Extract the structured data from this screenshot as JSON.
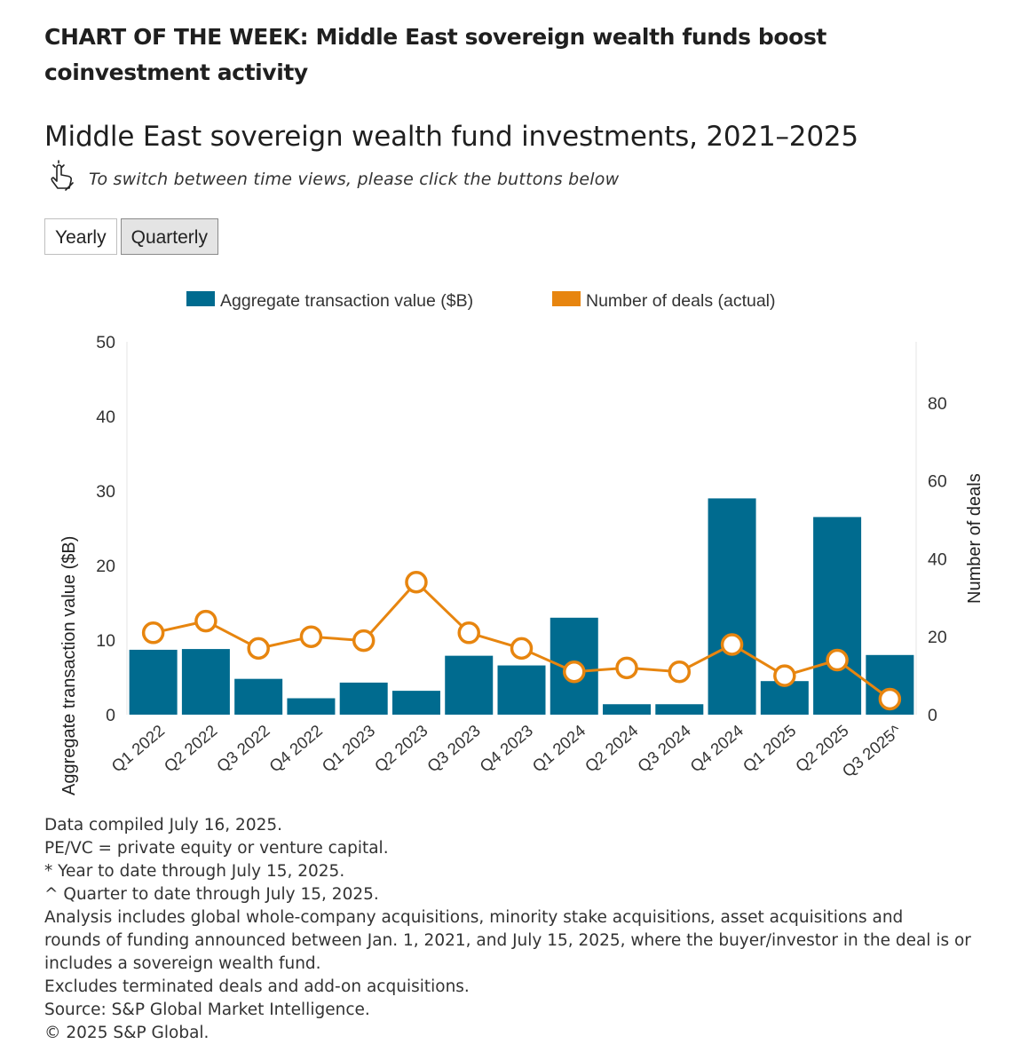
{
  "headline": "CHART OF THE WEEK: Middle East sovereign wealth funds boost coinvestment activity",
  "title": "Middle East sovereign wealth fund investments, 2021–2025",
  "instruction": "To switch between time views, please click the buttons below",
  "view_buttons": [
    "Yearly",
    "Quarterly"
  ],
  "active_view": "Quarterly",
  "colors": {
    "bars": "#006b8f",
    "line": "#e7850f",
    "marker_fill": "#ffffff"
  },
  "chart_data": {
    "type": "bar",
    "categories": [
      "Q1 2022",
      "Q2 2022",
      "Q3 2022",
      "Q4 2022",
      "Q1 2023",
      "Q2 2023",
      "Q3 2023",
      "Q4 2023",
      "Q1 2024",
      "Q2 2024",
      "Q3 2024",
      "Q4 2024",
      "Q1 2025",
      "Q2 2025",
      "Q3 2025^"
    ],
    "series": [
      {
        "name": "Aggregate transaction value ($B)",
        "type": "bar",
        "axis": "left",
        "values": [
          8.7,
          8.8,
          4.8,
          2.2,
          4.3,
          3.2,
          7.9,
          6.6,
          13.0,
          1.4,
          1.4,
          29.0,
          4.5,
          26.5,
          8.0
        ]
      },
      {
        "name": "Number of deals (actual)",
        "type": "line",
        "axis": "right",
        "values": [
          21,
          24,
          17,
          20,
          19,
          34,
          21,
          17,
          11,
          12,
          11,
          18,
          10,
          14,
          4
        ]
      }
    ],
    "ylabel": "Aggregate transaction value ($B)",
    "y2label": "Number of deals",
    "ylim": [
      0,
      50
    ],
    "y2lim": [
      0,
      95
    ],
    "yticks": [
      0,
      10,
      20,
      30,
      40,
      50
    ],
    "y2ticks": [
      0,
      20,
      40,
      60,
      80
    ],
    "legend_position": "top"
  },
  "footnotes": [
    "Data compiled July 16, 2025.",
    "PE/VC = private equity or venture capital.",
    "* Year to date through July 15, 2025.",
    "^ Quarter to date through July 15, 2025.",
    "Analysis includes global whole-company acquisitions, minority stake acquisitions, asset acquisitions and",
    "rounds of funding announced between Jan. 1, 2021, and July 15, 2025, where the buyer/investor in the deal is or",
    "includes a sovereign wealth fund.",
    "Excludes terminated deals and add-on acquisitions.",
    "Source: S&P Global Market Intelligence.",
    "© 2025 S&P Global."
  ]
}
